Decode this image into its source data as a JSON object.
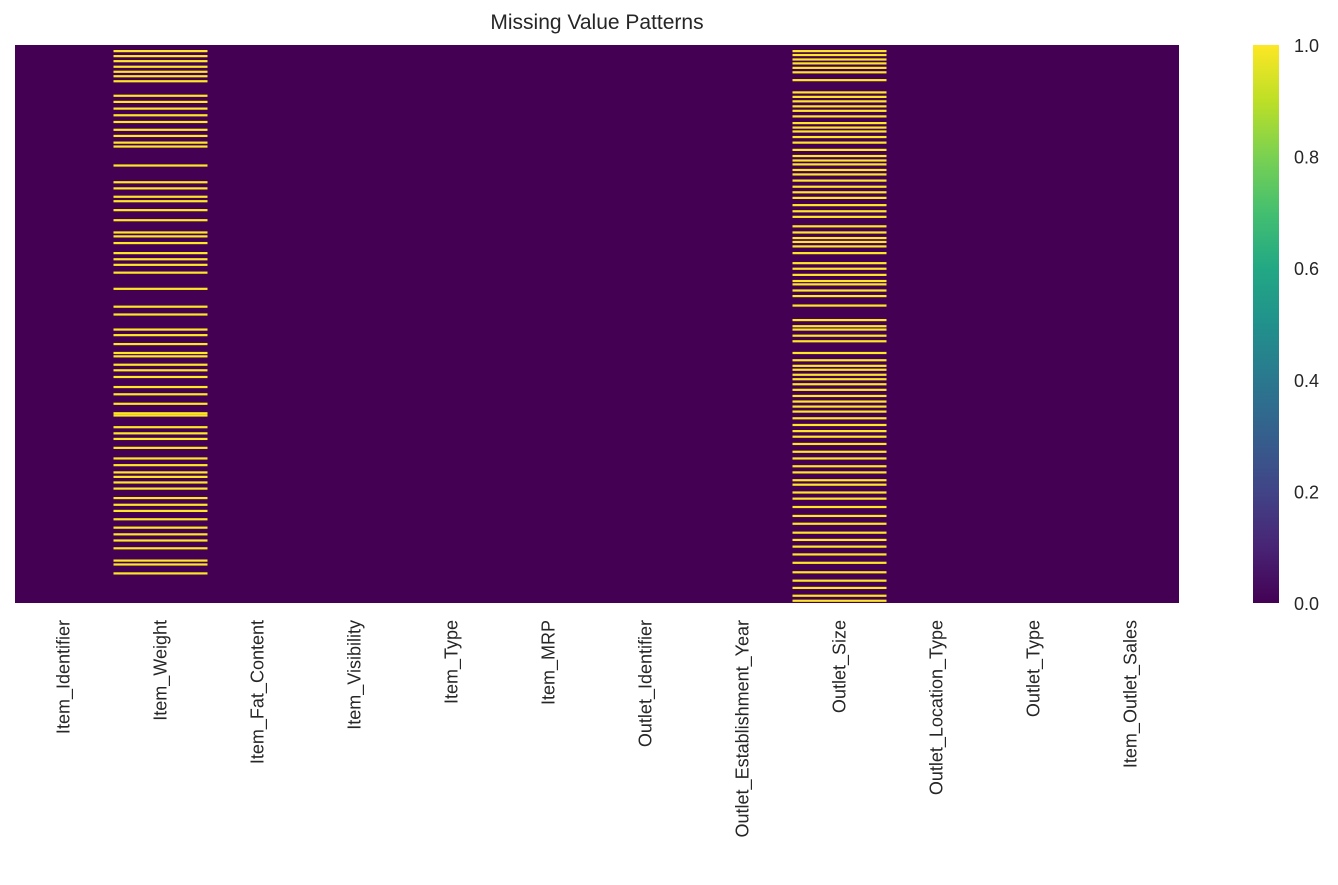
{
  "chart_data": {
    "type": "heatmap",
    "title": "Missing Value Patterns",
    "xlabel": "",
    "ylabel": "",
    "columns": [
      "Item_Identifier",
      "Item_Weight",
      "Item_Fat_Content",
      "Item_Visibility",
      "Item_Type",
      "Item_MRP",
      "Outlet_Identifier",
      "Outlet_Establishment_Year",
      "Outlet_Size",
      "Outlet_Location_Type",
      "Outlet_Type",
      "Item_Outlet_Sales"
    ],
    "value_meaning": "missing indicator (1 = missing, 0 = present)",
    "row_ticks_shown": false,
    "missing_row_positions": {
      "Item_Weight": [
        0.009,
        0.018,
        0.027,
        0.037,
        0.046,
        0.054,
        0.063,
        0.089,
        0.1,
        0.112,
        0.124,
        0.136,
        0.15,
        0.161,
        0.173,
        0.18,
        0.214,
        0.244,
        0.255,
        0.27,
        0.278,
        0.294,
        0.312,
        0.334,
        0.341,
        0.353,
        0.371,
        0.382,
        0.392,
        0.406,
        0.435,
        0.467,
        0.481,
        0.508,
        0.518,
        0.534,
        0.55,
        0.556,
        0.571,
        0.581,
        0.593,
        0.611,
        0.624,
        0.641,
        0.658,
        0.662,
        0.683,
        0.694,
        0.704,
        0.72,
        0.739,
        0.751,
        0.764,
        0.772,
        0.782,
        0.793,
        0.81,
        0.822,
        0.833,
        0.848,
        0.863,
        0.875,
        0.886,
        0.9,
        0.922,
        0.929,
        0.945
      ],
      "Outlet_Size": [
        0.009,
        0.016,
        0.024,
        0.031,
        0.039,
        0.047,
        0.061,
        0.083,
        0.091,
        0.099,
        0.108,
        0.116,
        0.126,
        0.138,
        0.146,
        0.153,
        0.163,
        0.173,
        0.186,
        0.197,
        0.205,
        0.212,
        0.222,
        0.23,
        0.241,
        0.252,
        0.262,
        0.272,
        0.285,
        0.296,
        0.306,
        0.323,
        0.334,
        0.344,
        0.351,
        0.359,
        0.371,
        0.389,
        0.399,
        0.41,
        0.421,
        0.427,
        0.438,
        0.448,
        0.465,
        0.491,
        0.502,
        0.508,
        0.519,
        0.529,
        0.55,
        0.563,
        0.573,
        0.58,
        0.589,
        0.597,
        0.606,
        0.616,
        0.627,
        0.637,
        0.646,
        0.655,
        0.667,
        0.679,
        0.69,
        0.7,
        0.713,
        0.727,
        0.739,
        0.753,
        0.764,
        0.778,
        0.786,
        0.8,
        0.811,
        0.826,
        0.842,
        0.856,
        0.872,
        0.885,
        0.897,
        0.911,
        0.926,
        0.943,
        0.958,
        0.971,
        0.985,
        0.994
      ]
    },
    "colorbar": {
      "colormap": "viridis",
      "range": [
        0.0,
        1.0
      ],
      "ticks": [
        "0.0",
        "0.2",
        "0.4",
        "0.6",
        "0.8",
        "1.0"
      ]
    },
    "colors": {
      "present": "#440154",
      "missing": "#fde725"
    }
  }
}
